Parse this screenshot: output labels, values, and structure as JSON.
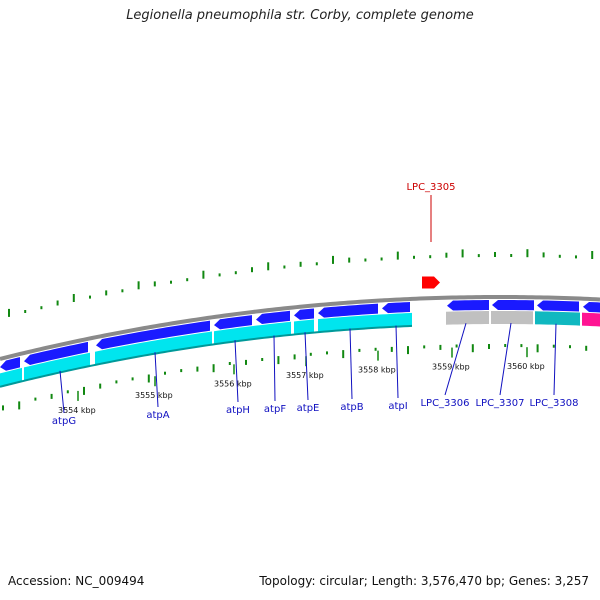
{
  "title": "Legionella pneumophila str. Corby, complete genome",
  "footer": {
    "accession": "Accession: NC_009494",
    "topology": "Topology: circular; Length: 3,576,470 bp; Genes: 3,257"
  },
  "colors": {
    "forward_gene": "#1a1aff",
    "reverse_gene": "#1a1aff",
    "cds_track": "#00e5ee",
    "gray_cds": "#c0c0c0",
    "teal_cds": "#10b8c0",
    "pink_cds": "#ff1493",
    "backbone": "#8a8a8a",
    "gc_bar": "#118811",
    "label_blue": "#1010c0",
    "label_red": "#cc0000",
    "marker": "#ff0000"
  },
  "scale_labels": [
    "3554 kbp",
    "3555 kbp",
    "3556 kbp",
    "3557 kbp",
    "3558 kbp",
    "3559 kbp",
    "3560 kbp"
  ],
  "genes": [
    {
      "name": "atpG"
    },
    {
      "name": "atpA"
    },
    {
      "name": "atpH"
    },
    {
      "name": "atpF"
    },
    {
      "name": "atpE"
    },
    {
      "name": "atpB"
    },
    {
      "name": "atpI"
    },
    {
      "name": "LPC_3306"
    },
    {
      "name": "LPC_3307"
    },
    {
      "name": "LPC_3308"
    }
  ],
  "highlight_gene": {
    "name": "LPC_3305"
  }
}
